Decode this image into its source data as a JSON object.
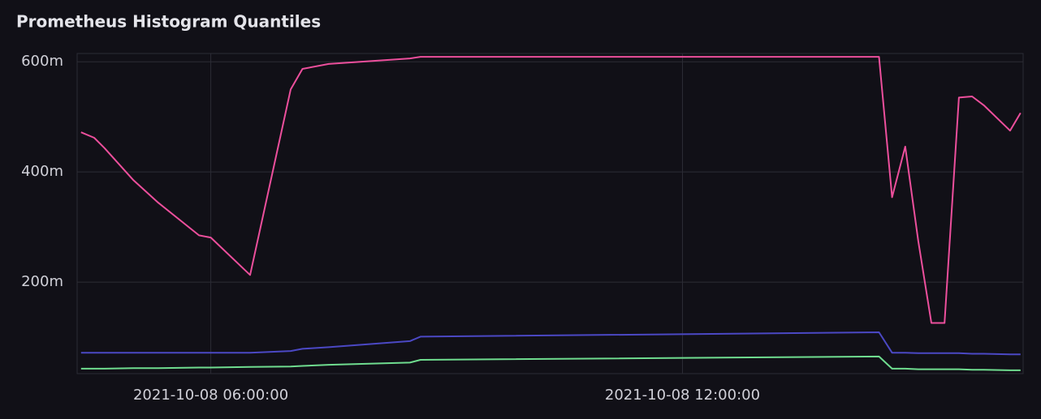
{
  "chart_data": {
    "type": "line",
    "title": "Prometheus Histogram Quantiles",
    "x": [
      "2021-10-08 04:21:00",
      "2021-10-08 04:31:00",
      "2021-10-08 04:39:00",
      "2021-10-08 05:01:00",
      "2021-10-08 05:20:00",
      "2021-10-08 05:51:00",
      "2021-10-08 06:00:00",
      "2021-10-08 06:30:00",
      "2021-10-08 07:01:00",
      "2021-10-08 07:10:00",
      "2021-10-08 07:30:00",
      "2021-10-08 08:32:00",
      "2021-10-08 08:40:00",
      "2021-10-08 14:30:00",
      "2021-10-08 14:40:00",
      "2021-10-08 14:50:00",
      "2021-10-08 15:00:00",
      "2021-10-08 15:10:00",
      "2021-10-08 15:20:00",
      "2021-10-08 15:31:00",
      "2021-10-08 15:41:00",
      "2021-10-08 15:50:00",
      "2021-10-08 16:10:00",
      "2021-10-08 16:18:00"
    ],
    "series": [
      {
        "color": "#ec4f9c",
        "values": [
          472,
          462,
          443,
          385,
          344,
          285,
          281,
          213,
          550,
          587,
          596,
          606,
          609,
          609,
          354,
          446,
          274,
          126,
          126,
          535,
          537,
          521,
          475,
          507
        ]
      },
      {
        "color": "#4b48c4",
        "values": [
          72,
          72,
          72,
          72,
          72,
          72,
          72,
          72,
          75,
          79,
          82,
          93,
          101,
          109,
          72,
          72,
          71,
          71,
          71,
          71,
          70,
          70,
          69,
          69
        ]
      },
      {
        "color": "#6fdc8f",
        "values": [
          43,
          43,
          43,
          44,
          44,
          45,
          45,
          46,
          47,
          48,
          50,
          54,
          59,
          65,
          43,
          43,
          42,
          42,
          42,
          42,
          41,
          41,
          40,
          40
        ]
      }
    ],
    "xlim": [
      "2021-10-08 04:18:00",
      "2021-10-08 16:20:00"
    ],
    "xticks": [
      "2021-10-08 06:00:00",
      "2021-10-08 12:00:00"
    ],
    "ylim": [
      34,
      615
    ],
    "yticks": [
      {
        "value": 200,
        "label": "200m"
      },
      {
        "value": 400,
        "label": "400m"
      },
      {
        "value": 600,
        "label": "600m"
      }
    ],
    "grid": true
  }
}
